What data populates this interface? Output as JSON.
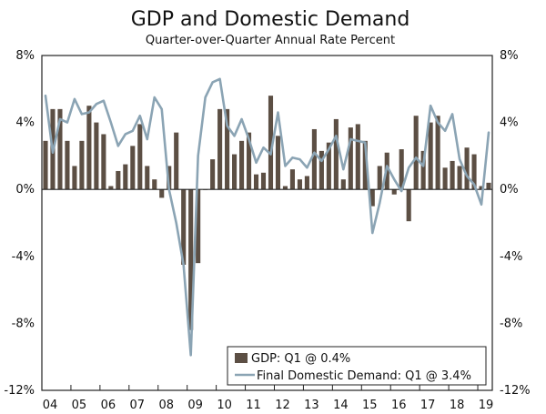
{
  "chart_data": {
    "type": "bar+line",
    "title": "GDP and Domestic Demand",
    "subtitle": "Quarter-over-Quarter Annual Rate Percent",
    "ylim": [
      -12,
      8
    ],
    "yticks": [
      8,
      4,
      0,
      -4,
      -8,
      -12
    ],
    "ytick_labels": [
      "8%",
      "4%",
      "0%",
      "-4%",
      "-8%",
      "-12%"
    ],
    "x_start": "2004Q1",
    "year_labels": [
      "04",
      "05",
      "06",
      "07",
      "08",
      "09",
      "10",
      "11",
      "12",
      "13",
      "14",
      "15",
      "16",
      "17",
      "18",
      "19"
    ],
    "series": [
      {
        "name": "GDP",
        "kind": "bar",
        "legend_label": "GDP: Q1 @ 0.4%",
        "color": "#5c4f44",
        "values": [
          2.9,
          4.8,
          4.8,
          2.9,
          1.4,
          2.9,
          5.0,
          4.0,
          3.3,
          0.2,
          1.1,
          1.5,
          2.6,
          3.9,
          1.4,
          0.6,
          -0.5,
          1.4,
          3.4,
          -4.5,
          -8.4,
          -4.4,
          0.0,
          1.8,
          4.8,
          4.8,
          2.1,
          2.9,
          3.4,
          0.9,
          1.0,
          5.6,
          3.2,
          0.2,
          1.2,
          0.6,
          0.8,
          3.6,
          2.3,
          2.8,
          4.2,
          0.6,
          3.7,
          3.9,
          2.9,
          -1.0,
          1.4,
          2.2,
          -0.3,
          2.4,
          -1.9,
          4.4,
          2.3,
          4.0,
          4.4,
          1.3,
          1.7,
          1.4,
          2.5,
          2.1,
          0.2,
          0.4
        ]
      },
      {
        "name": "Final Domestic Demand",
        "kind": "line",
        "legend_label": "Final Domestic Demand: Q1 @ 3.4%",
        "color": "#8ba4b4",
        "values": [
          5.6,
          2.2,
          4.2,
          4.0,
          5.4,
          4.5,
          4.6,
          5.1,
          5.3,
          4.0,
          2.6,
          3.3,
          3.5,
          4.4,
          3.0,
          5.5,
          4.8,
          0.0,
          -2.0,
          -4.5,
          -9.9,
          2.0,
          5.5,
          6.4,
          6.6,
          3.8,
          3.2,
          4.2,
          3.0,
          1.6,
          2.5,
          2.1,
          4.6,
          1.4,
          1.9,
          1.8,
          1.3,
          2.2,
          1.7,
          2.4,
          3.2,
          1.2,
          3.0,
          2.9,
          2.8,
          -2.6,
          -0.8,
          1.4,
          0.6,
          -0.1,
          1.3,
          1.9,
          1.4,
          5.0,
          4.0,
          3.5,
          4.5,
          1.8,
          0.8,
          0.3,
          -0.9,
          3.4
        ]
      }
    ],
    "grid": false,
    "legend_position": "bottom-right"
  }
}
